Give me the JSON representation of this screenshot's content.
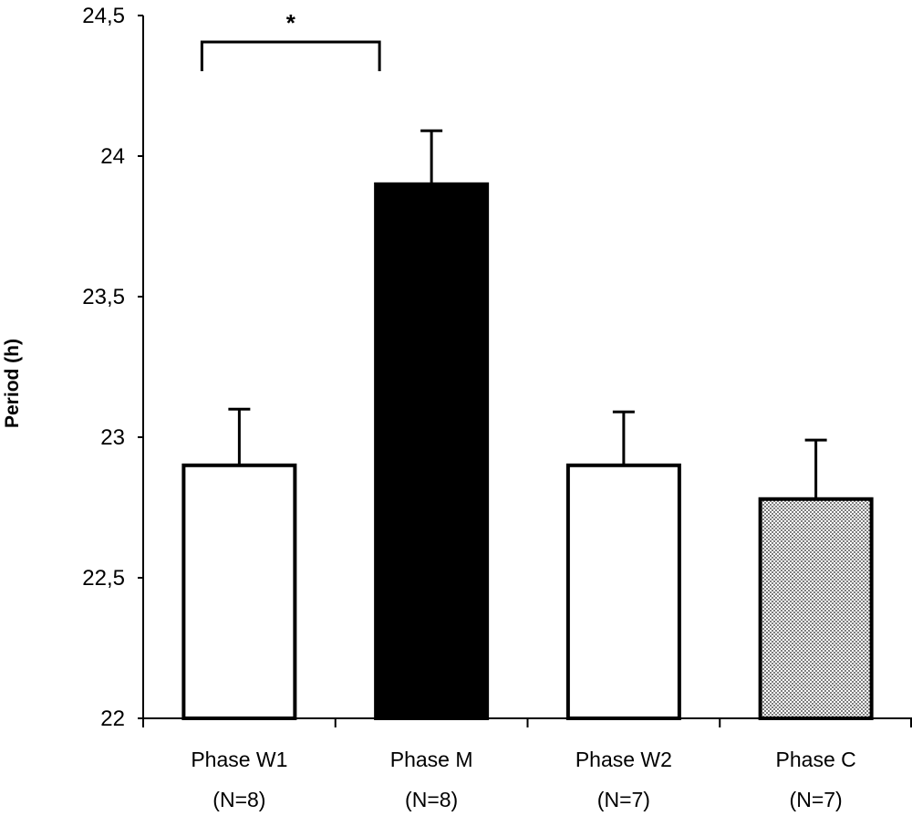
{
  "chart_data": {
    "type": "bar",
    "title": "",
    "xlabel": "",
    "ylabel": "Period (h)",
    "ylim": [
      22,
      24.5
    ],
    "y_ticks": [
      22,
      22.5,
      23,
      23.5,
      24,
      24.5
    ],
    "y_tick_labels": [
      "22",
      "22,5",
      "23",
      "23,5",
      "24",
      "24,5"
    ],
    "categories": [
      "Phase W1",
      "Phase M",
      "Phase W2",
      "Phase C"
    ],
    "sample_sizes": [
      "(N=8)",
      "(N=8)",
      "(N=7)",
      "(N=7)"
    ],
    "values": [
      22.9,
      23.9,
      22.9,
      22.78
    ],
    "error_upper": [
      23.1,
      24.09,
      23.09,
      22.99
    ],
    "bar_fills": [
      "white",
      "black",
      "white",
      "dotted"
    ],
    "significance": {
      "from": 0,
      "to": 1,
      "label": "*"
    },
    "grid": false,
    "legend": "none"
  },
  "colors": {
    "ink": "#000000",
    "background": "#ffffff",
    "dot_fill": "#9a9a9a"
  }
}
